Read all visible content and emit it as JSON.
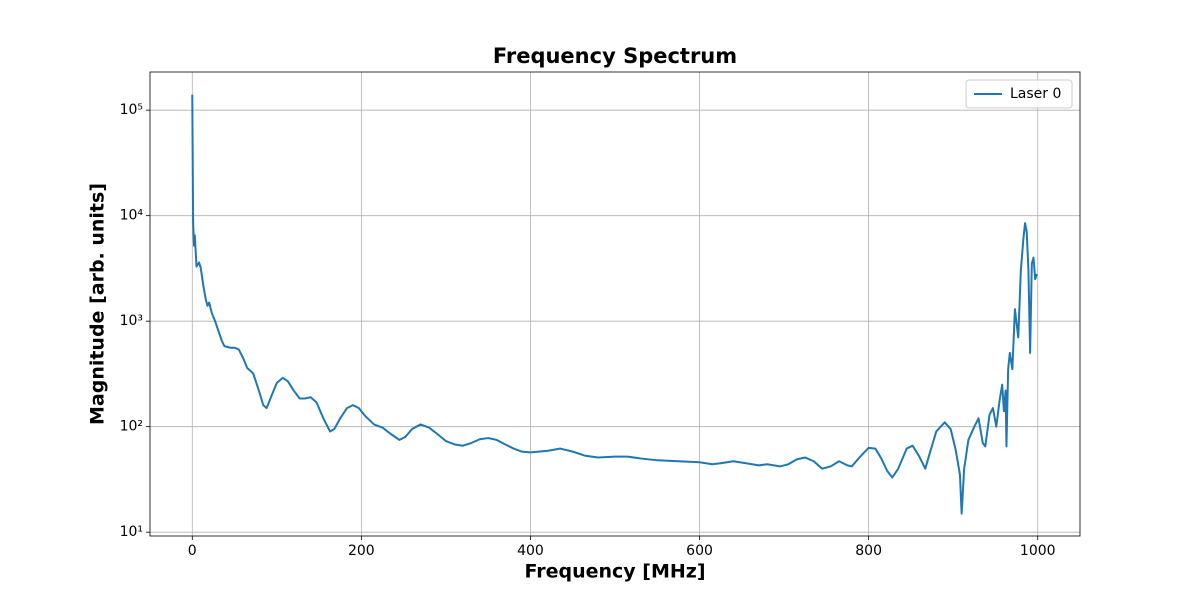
{
  "chart_data": {
    "type": "line",
    "title": "Frequency Spectrum",
    "x_label": "Frequency [MHz]",
    "y_label": "Magnitude [arb. units]",
    "x": [
      0,
      1,
      2,
      3,
      5,
      8,
      10,
      13,
      16,
      18,
      20,
      23,
      27,
      30,
      35,
      38,
      45,
      50,
      55,
      60,
      65,
      72,
      78,
      84,
      88,
      93,
      100,
      107,
      113,
      120,
      127,
      133,
      140,
      147,
      155,
      163,
      168,
      175,
      183,
      190,
      197,
      205,
      215,
      225,
      235,
      245,
      252,
      260,
      270,
      280,
      290,
      300,
      310,
      320,
      330,
      340,
      350,
      360,
      370,
      380,
      390,
      400,
      420,
      435,
      450,
      465,
      480,
      500,
      515,
      530,
      550,
      575,
      600,
      615,
      625,
      640,
      655,
      670,
      680,
      695,
      705,
      715,
      725,
      735,
      745,
      755,
      765,
      775,
      780,
      790,
      800,
      808,
      815,
      822,
      828,
      835,
      845,
      852,
      860,
      867,
      872,
      880,
      890,
      897,
      903,
      908,
      910,
      913,
      918,
      925,
      930,
      935,
      938,
      943,
      947,
      951,
      955,
      958,
      960,
      962,
      963,
      965,
      967,
      970,
      973,
      977,
      980,
      983,
      985,
      987,
      989,
      991,
      993,
      995,
      997,
      999
    ],
    "series": [
      {
        "name": "Laser 0",
        "color": "#1f77b4",
        "values": [
          140000,
          9000,
          5200,
          6500,
          3300,
          3600,
          3200,
          2200,
          1600,
          1400,
          1500,
          1200,
          1000,
          850,
          650,
          580,
          560,
          560,
          540,
          450,
          360,
          320,
          230,
          160,
          150,
          190,
          260,
          290,
          270,
          220,
          185,
          185,
          190,
          170,
          120,
          90,
          95,
          120,
          150,
          160,
          150,
          125,
          105,
          98,
          85,
          75,
          80,
          95,
          105,
          98,
          85,
          73,
          68,
          66,
          70,
          76,
          78,
          75,
          68,
          62,
          58,
          57,
          59,
          62,
          58,
          53,
          51,
          52,
          52,
          50,
          48,
          47,
          46,
          44,
          45,
          47,
          45,
          43,
          44,
          42,
          44,
          49,
          51,
          47,
          40,
          42,
          47,
          43,
          42,
          52,
          63,
          62,
          50,
          38,
          33,
          40,
          62,
          66,
          52,
          40,
          55,
          90,
          110,
          95,
          60,
          35,
          15,
          40,
          75,
          100,
          120,
          70,
          65,
          130,
          150,
          100,
          180,
          250,
          140,
          220,
          65,
          350,
          500,
          350,
          1300,
          700,
          3000,
          6000,
          8500,
          7000,
          3000,
          500,
          3500,
          4000,
          2500,
          2800
        ]
      }
    ],
    "xlim": [
      -50,
      1050
    ],
    "xticks": [
      0,
      200,
      400,
      600,
      800,
      1000
    ],
    "ylim": [
      9.2,
      230000
    ],
    "log_y": true,
    "yticks": [
      {
        "value": 10,
        "label": "10¹"
      },
      {
        "value": 100,
        "label": "10²"
      },
      {
        "value": 1000,
        "label": "10³"
      },
      {
        "value": 10000,
        "label": "10⁴"
      },
      {
        "value": 100000,
        "label": "10⁵"
      }
    ],
    "grid": true,
    "legend": "upper right"
  }
}
